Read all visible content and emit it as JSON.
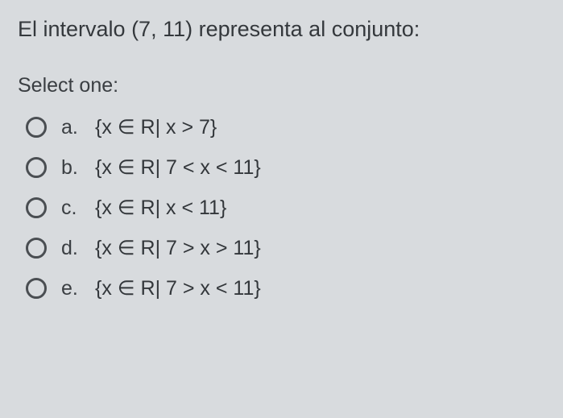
{
  "question_text": "El intervalo (7, 11) representa al conjunto:",
  "prompt_text": "Select one:",
  "text_color": "#3a3e42",
  "background_color": "#d8dbde",
  "radio_border_color": "#4a4e52",
  "font_size_question": 27,
  "font_size_options": 25,
  "options": [
    {
      "letter": "a.",
      "text": "{x ∈ R| x > 7}"
    },
    {
      "letter": "b.",
      "text": "{x ∈ R| 7 < x < 11}"
    },
    {
      "letter": "c.",
      "text": "{x ∈ R| x < 11}"
    },
    {
      "letter": "d.",
      "text": "{x ∈ R| 7 > x > 11}"
    },
    {
      "letter": "e.",
      "text": "{x ∈ R| 7 > x < 11}"
    }
  ]
}
